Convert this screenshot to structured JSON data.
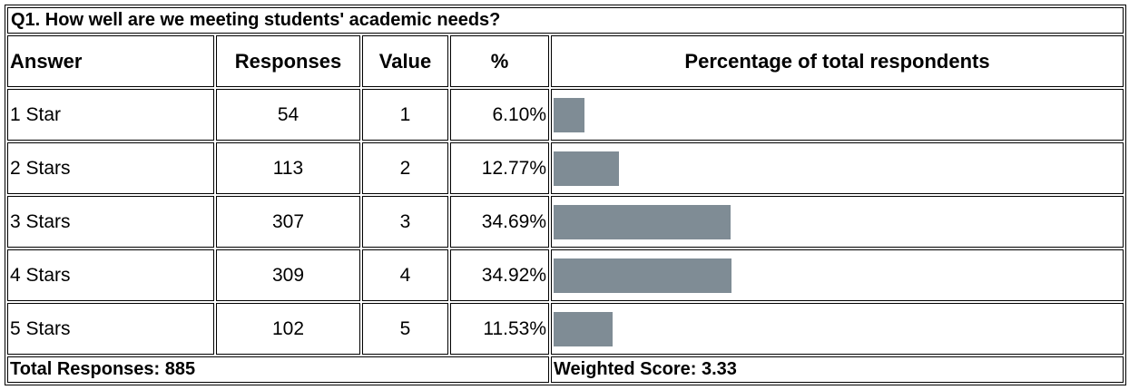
{
  "title": "Q1. How well are we meeting students' academic needs?",
  "columns": [
    "Answer",
    "Responses",
    "Value",
    "%",
    "Percentage of total respondents"
  ],
  "rows": [
    {
      "answer": "1 Star",
      "responses": 54,
      "value": 1,
      "percent": 6.1,
      "percent_label": "6.10%"
    },
    {
      "answer": "2 Stars",
      "responses": 113,
      "value": 2,
      "percent": 12.77,
      "percent_label": "12.77%"
    },
    {
      "answer": "3 Stars",
      "responses": 307,
      "value": 3,
      "percent": 34.69,
      "percent_label": "34.69%"
    },
    {
      "answer": "4 Stars",
      "responses": 309,
      "value": 4,
      "percent": 34.92,
      "percent_label": "34.92%"
    },
    {
      "answer": "5 Stars",
      "responses": 102,
      "value": 5,
      "percent": 11.53,
      "percent_label": "11.53%"
    }
  ],
  "bar_color": "#7f8c95",
  "footer": {
    "total": "Total Responses: 885",
    "weighted": "Weighted Score: 3.33"
  }
}
